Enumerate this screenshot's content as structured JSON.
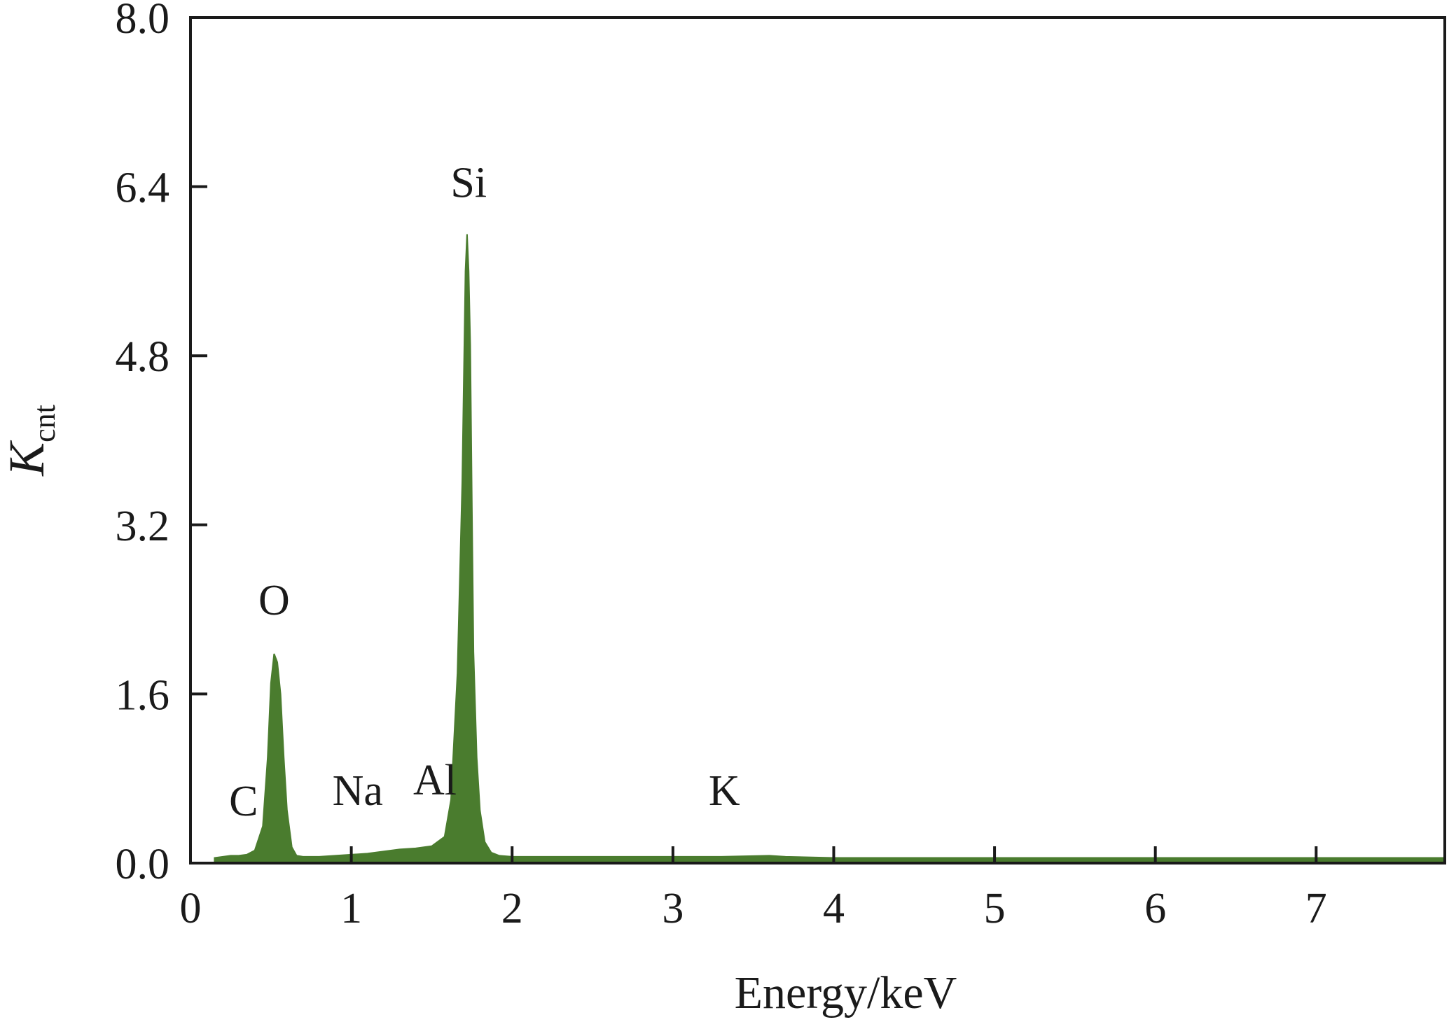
{
  "chart_data": {
    "type": "area",
    "title": "",
    "xlabel": "Energy/keV",
    "ylabel": {
      "main": "K",
      "sub": "cnt"
    },
    "xlim": [
      0,
      7.8
    ],
    "ylim": [
      0,
      8.0
    ],
    "xticks": [
      0,
      1,
      2,
      3,
      4,
      5,
      6,
      7
    ],
    "xtick_labels": [
      "0",
      "1",
      "2",
      "3",
      "4",
      "5",
      "6",
      "7"
    ],
    "yticks": [
      0.0,
      1.6,
      3.2,
      4.8,
      6.4,
      8.0
    ],
    "ytick_labels": [
      "0.0",
      "1.6",
      "3.2",
      "4.8",
      "6.4",
      "8.0"
    ],
    "grid": false,
    "legend": "none",
    "fill_color": "#4a7c2e",
    "series": [
      {
        "x": [
          0.15,
          0.25,
          0.3,
          0.35,
          0.4,
          0.45,
          0.48,
          0.5,
          0.52,
          0.54,
          0.56,
          0.58,
          0.6,
          0.63,
          0.66,
          0.7,
          0.8,
          0.9,
          1.0,
          1.1,
          1.2,
          1.3,
          1.4,
          1.5,
          1.58,
          1.62,
          1.66,
          1.69,
          1.71,
          1.72,
          1.73,
          1.74,
          1.75,
          1.76,
          1.78,
          1.8,
          1.83,
          1.87,
          1.92,
          2.0,
          2.2,
          2.5,
          3.0,
          3.3,
          3.6,
          3.7,
          4.0,
          4.5,
          5.0,
          6.0,
          7.0,
          7.8
        ],
        "y": [
          0.05,
          0.07,
          0.07,
          0.08,
          0.12,
          0.35,
          1.0,
          1.7,
          1.98,
          1.9,
          1.6,
          1.0,
          0.5,
          0.15,
          0.07,
          0.06,
          0.06,
          0.07,
          0.08,
          0.09,
          0.11,
          0.13,
          0.14,
          0.16,
          0.25,
          0.6,
          1.8,
          3.6,
          5.6,
          5.95,
          5.6,
          4.9,
          3.4,
          2.0,
          1.0,
          0.5,
          0.2,
          0.1,
          0.07,
          0.06,
          0.06,
          0.06,
          0.06,
          0.06,
          0.07,
          0.06,
          0.05,
          0.05,
          0.05,
          0.05,
          0.05,
          0.05
        ]
      }
    ],
    "annotations": [
      {
        "text": "C",
        "x": 0.33,
        "y": 0.45
      },
      {
        "text": "O",
        "x": 0.52,
        "y": 2.35
      },
      {
        "text": "Na",
        "x": 1.04,
        "y": 0.55
      },
      {
        "text": "Al",
        "x": 1.52,
        "y": 0.65
      },
      {
        "text": "Si",
        "x": 1.73,
        "y": 6.3
      },
      {
        "text": "K",
        "x": 3.32,
        "y": 0.55
      }
    ]
  }
}
